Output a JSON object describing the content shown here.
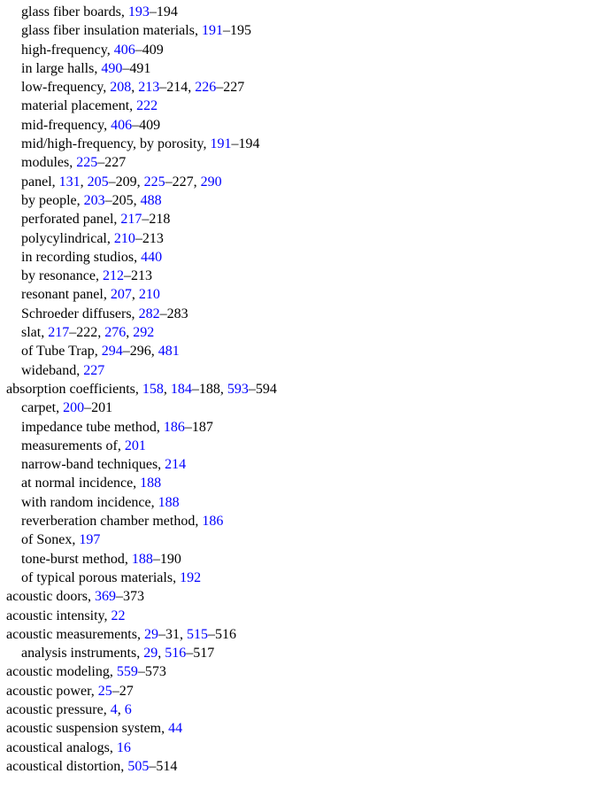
{
  "page": {
    "kind": "book-index-page",
    "background": "#ffffff",
    "text_color": "#000000",
    "link_color": "#0000ff",
    "label_suffix": ", ",
    "ref_separator": ", "
  },
  "index": {
    "entries": [
      {
        "indent": 1,
        "label": "glass fiber boards",
        "refs": [
          {
            "n": "193",
            "after": "–194"
          }
        ]
      },
      {
        "indent": 1,
        "label": "glass fiber insulation materials",
        "refs": [
          {
            "n": "191",
            "after": "–195"
          }
        ]
      },
      {
        "indent": 1,
        "label": "high-frequency",
        "refs": [
          {
            "n": "406",
            "after": "–409"
          }
        ]
      },
      {
        "indent": 1,
        "label": "in large halls",
        "refs": [
          {
            "n": "490",
            "after": "–491"
          }
        ]
      },
      {
        "indent": 1,
        "label": "low-frequency",
        "refs": [
          {
            "n": "208"
          },
          {
            "n": "213",
            "after": "–214"
          },
          {
            "n": "226",
            "after": "–227"
          }
        ]
      },
      {
        "indent": 1,
        "label": "material placement",
        "refs": [
          {
            "n": "222"
          }
        ]
      },
      {
        "indent": 1,
        "label": "mid-frequency",
        "refs": [
          {
            "n": "406",
            "after": "–409"
          }
        ]
      },
      {
        "indent": 1,
        "label": "mid/high-frequency, by porosity",
        "refs": [
          {
            "n": "191",
            "after": "–194"
          }
        ]
      },
      {
        "indent": 1,
        "label": "modules",
        "refs": [
          {
            "n": "225",
            "after": "–227"
          }
        ]
      },
      {
        "indent": 1,
        "label": "panel",
        "refs": [
          {
            "n": "131"
          },
          {
            "n": "205",
            "after": "–209"
          },
          {
            "n": "225",
            "after": "–227"
          },
          {
            "n": "290"
          }
        ]
      },
      {
        "indent": 1,
        "label": "by people",
        "refs": [
          {
            "n": "203",
            "after": "–205"
          },
          {
            "n": "488"
          }
        ]
      },
      {
        "indent": 1,
        "label": "perforated panel",
        "refs": [
          {
            "n": "217",
            "after": "–218"
          }
        ]
      },
      {
        "indent": 1,
        "label": "polycylindrical",
        "refs": [
          {
            "n": "210",
            "after": "–213"
          }
        ]
      },
      {
        "indent": 1,
        "label": "in recording studios",
        "refs": [
          {
            "n": "440"
          }
        ]
      },
      {
        "indent": 1,
        "label": "by resonance",
        "refs": [
          {
            "n": "212",
            "after": "–213"
          }
        ]
      },
      {
        "indent": 1,
        "label": "resonant panel",
        "refs": [
          {
            "n": "207"
          },
          {
            "n": "210"
          }
        ]
      },
      {
        "indent": 1,
        "label": "Schroeder diffusers",
        "refs": [
          {
            "n": "282",
            "after": "–283"
          }
        ]
      },
      {
        "indent": 1,
        "label": "slat",
        "refs": [
          {
            "n": "217",
            "after": "–222"
          },
          {
            "n": "276"
          },
          {
            "n": "292"
          }
        ]
      },
      {
        "indent": 1,
        "label": "of Tube Trap",
        "refs": [
          {
            "n": "294",
            "after": "–296"
          },
          {
            "n": "481"
          }
        ]
      },
      {
        "indent": 1,
        "label": "wideband",
        "refs": [
          {
            "n": "227"
          }
        ]
      },
      {
        "indent": 0,
        "label": "absorption coefficients",
        "refs": [
          {
            "n": "158"
          },
          {
            "n": "184",
            "after": "–188"
          },
          {
            "n": "593",
            "after": "–594"
          }
        ]
      },
      {
        "indent": 1,
        "label": "carpet",
        "refs": [
          {
            "n": "200",
            "after": "–201"
          }
        ]
      },
      {
        "indent": 1,
        "label": "impedance tube method",
        "refs": [
          {
            "n": "186",
            "after": "–187"
          }
        ]
      },
      {
        "indent": 1,
        "label": "measurements of",
        "refs": [
          {
            "n": "201"
          }
        ]
      },
      {
        "indent": 1,
        "label": "narrow-band techniques",
        "refs": [
          {
            "n": "214"
          }
        ]
      },
      {
        "indent": 1,
        "label": "at normal incidence",
        "refs": [
          {
            "n": "188"
          }
        ]
      },
      {
        "indent": 1,
        "label": "with random incidence",
        "refs": [
          {
            "n": "188"
          }
        ]
      },
      {
        "indent": 1,
        "label": "reverberation chamber method",
        "refs": [
          {
            "n": "186"
          }
        ]
      },
      {
        "indent": 1,
        "label": "of Sonex",
        "refs": [
          {
            "n": "197"
          }
        ]
      },
      {
        "indent": 1,
        "label": "tone-burst method",
        "refs": [
          {
            "n": "188",
            "after": "–190"
          }
        ]
      },
      {
        "indent": 1,
        "label": "of typical porous materials",
        "refs": [
          {
            "n": "192"
          }
        ]
      },
      {
        "indent": 0,
        "label": "acoustic doors",
        "refs": [
          {
            "n": "369",
            "after": "–373"
          }
        ]
      },
      {
        "indent": 0,
        "label": "acoustic intensity",
        "refs": [
          {
            "n": "22"
          }
        ]
      },
      {
        "indent": 0,
        "label": "acoustic measurements",
        "refs": [
          {
            "n": "29",
            "after": "–31"
          },
          {
            "n": "515",
            "after": "–516"
          }
        ]
      },
      {
        "indent": 1,
        "label": "analysis instruments",
        "refs": [
          {
            "n": "29"
          },
          {
            "n": "516",
            "after": "–517"
          }
        ]
      },
      {
        "indent": 0,
        "label": "acoustic modeling",
        "refs": [
          {
            "n": "559",
            "after": "–573"
          }
        ]
      },
      {
        "indent": 0,
        "label": "acoustic power",
        "refs": [
          {
            "n": "25",
            "after": "–27"
          }
        ]
      },
      {
        "indent": 0,
        "label": "acoustic pressure",
        "refs": [
          {
            "n": "4"
          },
          {
            "n": "6"
          }
        ]
      },
      {
        "indent": 0,
        "label": "acoustic suspension system",
        "refs": [
          {
            "n": "44"
          }
        ]
      },
      {
        "indent": 0,
        "label": "acoustical analogs",
        "refs": [
          {
            "n": "16"
          }
        ]
      },
      {
        "indent": 0,
        "label": "acoustical distortion",
        "refs": [
          {
            "n": "505",
            "after": "–514"
          }
        ]
      }
    ]
  }
}
